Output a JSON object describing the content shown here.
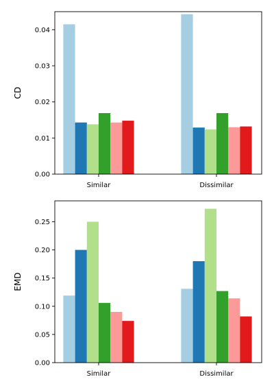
{
  "chart_data": [
    {
      "type": "bar",
      "categories": [
        "Similar",
        "Dissimilar"
      ],
      "ylabel": "CD",
      "xlabel": "",
      "ylim": [
        0,
        0.045
      ],
      "yticks": [
        "0.00",
        "0.01",
        "0.02",
        "0.03",
        "0.04"
      ],
      "series": [
        {
          "color": "#a6cee3",
          "values": [
            0.0415,
            0.0443
          ]
        },
        {
          "color": "#1f78b4",
          "values": [
            0.0143,
            0.0129
          ]
        },
        {
          "color": "#b2df8a",
          "values": [
            0.0138,
            0.0124
          ]
        },
        {
          "color": "#33a02c",
          "values": [
            0.0169,
            0.0169
          ]
        },
        {
          "color": "#fb9a99",
          "values": [
            0.0143,
            0.013
          ]
        },
        {
          "color": "#e31a1c",
          "values": [
            0.0148,
            0.0132
          ]
        }
      ]
    },
    {
      "type": "bar",
      "categories": [
        "Similar",
        "Dissimilar"
      ],
      "ylabel": "EMD",
      "xlabel": "",
      "ylim": [
        0,
        0.287
      ],
      "yticks": [
        "0.00",
        "0.05",
        "0.10",
        "0.15",
        "0.20",
        "0.25"
      ],
      "series": [
        {
          "color": "#a6cee3",
          "values": [
            0.119,
            0.131
          ]
        },
        {
          "color": "#1f78b4",
          "values": [
            0.2,
            0.18
          ]
        },
        {
          "color": "#b2df8a",
          "values": [
            0.25,
            0.273
          ]
        },
        {
          "color": "#33a02c",
          "values": [
            0.106,
            0.127
          ]
        },
        {
          "color": "#fb9a99",
          "values": [
            0.09,
            0.114
          ]
        },
        {
          "color": "#e31a1c",
          "values": [
            0.074,
            0.082
          ]
        }
      ]
    }
  ]
}
